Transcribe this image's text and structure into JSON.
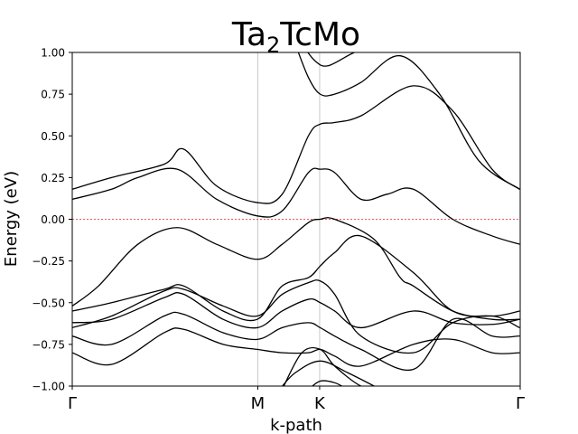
{
  "chart_data": {
    "type": "line",
    "title": {
      "base": "Ta",
      "sub": "2",
      "rest": "TcMo"
    },
    "xlabel": "k-path",
    "ylabel": "Energy (eV)",
    "ylim": [
      -1.0,
      1.0
    ],
    "xlim": [
      0,
      3.4142
    ],
    "yticks": [
      {
        "value": 1.0,
        "label": "1.00"
      },
      {
        "value": 0.75,
        "label": "0.75"
      },
      {
        "value": 0.5,
        "label": "0.50"
      },
      {
        "value": 0.25,
        "label": "0.25"
      },
      {
        "value": 0.0,
        "label": "0.00"
      },
      {
        "value": -0.25,
        "label": "−0.25"
      },
      {
        "value": -0.5,
        "label": "−0.50"
      },
      {
        "value": -0.75,
        "label": "−0.75"
      },
      {
        "value": -1.0,
        "label": "−1.00"
      }
    ],
    "xticks": [
      {
        "value": 0,
        "label": "Γ"
      },
      {
        "value": 1.4142,
        "label": "M"
      },
      {
        "value": 1.8856,
        "label": "K"
      },
      {
        "value": 3.4142,
        "label": "Γ"
      }
    ],
    "fermi_level": 0.0,
    "colors": {
      "bands": "#000000",
      "fermi": "#d62728",
      "vlines": "#c8c8c8"
    },
    "series": [
      {
        "x": [
          0,
          0.3,
          0.7,
          0.85,
          1.15,
          1.41,
          1.6,
          1.8,
          1.89,
          2.0,
          2.2,
          2.6,
          2.9,
          3.2,
          3.41
        ],
        "y": [
          -0.55,
          -0.5,
          -0.42,
          -0.4,
          -0.55,
          -0.6,
          -0.4,
          -0.35,
          -0.28,
          -0.2,
          -0.1,
          -0.32,
          -0.55,
          -0.58,
          -0.55
        ]
      },
      {
        "x": [
          0,
          0.3,
          0.7,
          0.85,
          1.15,
          1.41,
          1.6,
          1.8,
          1.89,
          2.0,
          2.2,
          2.6,
          2.9,
          3.2,
          3.41
        ],
        "y": [
          -0.62,
          -0.6,
          -0.47,
          -0.45,
          -0.6,
          -0.65,
          -0.55,
          -0.48,
          -0.5,
          -0.55,
          -0.65,
          -0.55,
          -0.62,
          -0.63,
          -0.6
        ]
      },
      {
        "x": [
          0,
          0.3,
          0.7,
          0.85,
          1.15,
          1.41,
          1.6,
          1.8,
          1.89,
          2.0,
          2.2,
          2.6,
          2.9,
          3.2,
          3.41
        ],
        "y": [
          -0.7,
          -0.75,
          -0.58,
          -0.57,
          -0.68,
          -0.72,
          -0.65,
          -0.62,
          -0.65,
          -0.7,
          -0.78,
          -0.9,
          -0.6,
          -0.7,
          -0.7
        ]
      },
      {
        "x": [
          0,
          0.3,
          0.7,
          0.85,
          1.15,
          1.41,
          1.6,
          1.8,
          1.89,
          2.0,
          2.2,
          2.6,
          2.9,
          3.2,
          3.41
        ],
        "y": [
          -0.8,
          -0.87,
          -0.68,
          -0.66,
          -0.75,
          -0.78,
          -0.8,
          -0.8,
          -0.78,
          -0.82,
          -0.88,
          -0.75,
          -0.72,
          -0.8,
          -0.8
        ]
      },
      {
        "x": [
          0,
          0.3,
          0.7,
          0.85,
          1.15,
          1.41,
          1.6,
          1.8,
          1.89,
          2.0,
          2.2,
          2.6,
          2.9,
          3.2,
          3.41
        ],
        "y": [
          -0.65,
          -0.58,
          -0.43,
          -0.42,
          -0.52,
          -0.58,
          -0.45,
          -0.38,
          -0.37,
          -0.45,
          -0.7,
          -0.8,
          -0.62,
          -0.58,
          -0.65
        ]
      },
      {
        "x": [
          0,
          0.2,
          0.5,
          0.8,
          1.1,
          1.41,
          1.6,
          1.8,
          1.89,
          2.0,
          2.3,
          2.5,
          2.6,
          2.9,
          3.2,
          3.41
        ],
        "y": [
          -0.52,
          -0.4,
          -0.15,
          -0.05,
          -0.15,
          -0.24,
          -0.15,
          -0.02,
          0.0,
          0.0,
          -0.12,
          -0.35,
          -0.4,
          -0.55,
          -0.6,
          -0.6
        ]
      },
      {
        "x": [
          0,
          0.3,
          0.5,
          0.8,
          1.1,
          1.41,
          1.6,
          1.8,
          1.89,
          2.0,
          2.2,
          2.4,
          2.6,
          2.9,
          3.2,
          3.41
        ],
        "y": [
          0.12,
          0.18,
          0.25,
          0.3,
          0.12,
          0.02,
          0.05,
          0.28,
          0.3,
          0.28,
          0.12,
          0.15,
          0.18,
          0.0,
          -0.1,
          -0.15
        ]
      },
      {
        "x": [
          0,
          0.3,
          0.7,
          0.85,
          1.1,
          1.41,
          1.6,
          1.8,
          1.89,
          2.0,
          2.2,
          2.6,
          2.9,
          3.2,
          3.41
        ],
        "y": [
          0.18,
          0.25,
          0.33,
          0.42,
          0.2,
          0.1,
          0.15,
          0.5,
          0.57,
          0.58,
          0.62,
          0.8,
          0.65,
          0.3,
          0.18
        ]
      },
      {
        "x": [
          1.7,
          1.8,
          1.89,
          2.0,
          2.2,
          2.5,
          2.8,
          3.1,
          3.41
        ],
        "y": [
          1.05,
          0.85,
          0.75,
          0.75,
          0.82,
          0.98,
          0.75,
          0.35,
          0.18
        ]
      },
      {
        "x": [
          1.75,
          1.85,
          1.95,
          2.15,
          2.35
        ],
        "y": [
          1.05,
          0.95,
          0.92,
          1.0,
          1.05
        ]
      },
      {
        "x": [
          1.6,
          1.75,
          1.89,
          2.0,
          2.2,
          2.35
        ],
        "y": [
          -1.02,
          -0.8,
          -0.78,
          -0.88,
          -1.0,
          -1.02
        ]
      },
      {
        "x": [
          1.58,
          1.7,
          1.89,
          2.1,
          2.35
        ],
        "y": [
          -1.02,
          -0.92,
          -0.85,
          -0.92,
          -1.02
        ]
      },
      {
        "x": [
          1.8,
          1.89,
          2.0,
          2.1
        ],
        "y": [
          -1.02,
          -0.97,
          -0.98,
          -1.02
        ]
      }
    ]
  }
}
